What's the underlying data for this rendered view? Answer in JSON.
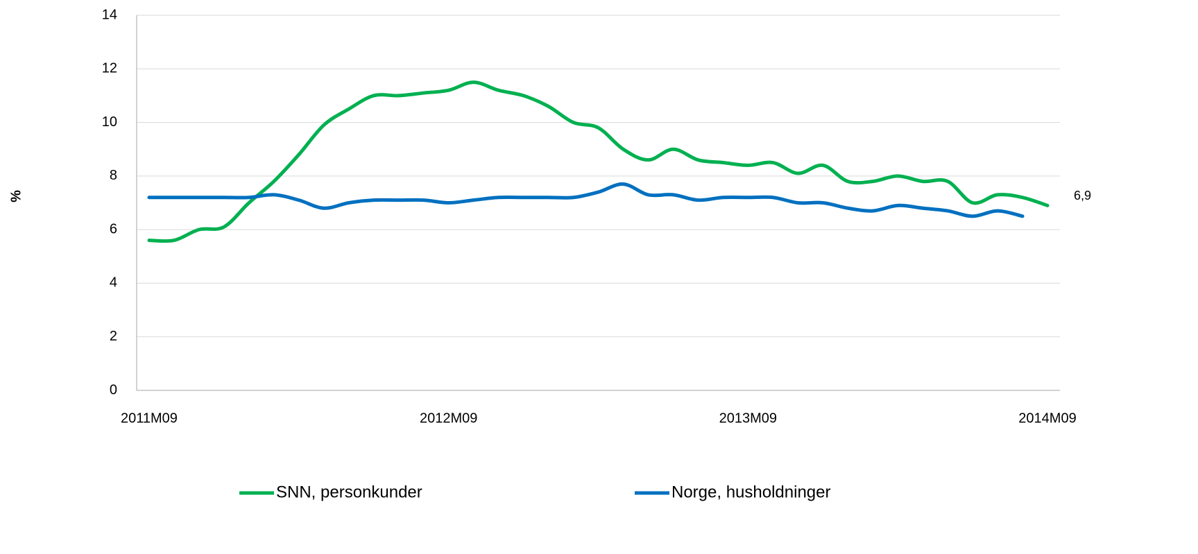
{
  "chart_data": {
    "type": "line",
    "y_label": "%",
    "categories": [
      "2011M09",
      null,
      null,
      null,
      null,
      null,
      null,
      null,
      null,
      null,
      null,
      null,
      "2012M09",
      null,
      null,
      null,
      null,
      null,
      null,
      null,
      null,
      null,
      null,
      null,
      "2013M09",
      null,
      null,
      null,
      null,
      null,
      null,
      null,
      null,
      null,
      null,
      null,
      "2014M09"
    ],
    "series": [
      {
        "name": "SNN, personkunder",
        "color": "#00b050",
        "values": [
          5.6,
          5.6,
          6.0,
          6.1,
          7.0,
          7.8,
          8.8,
          9.9,
          10.5,
          11.0,
          11.0,
          11.1,
          11.2,
          11.5,
          11.2,
          11.0,
          10.6,
          10.0,
          9.8,
          9.0,
          8.6,
          9.0,
          8.6,
          8.5,
          8.4,
          8.5,
          8.1,
          8.4,
          7.8,
          7.8,
          8.0,
          7.8,
          7.8,
          7.0,
          7.3,
          7.2,
          6.9
        ],
        "value_labels": [
          null,
          null,
          null,
          null,
          null,
          null,
          null,
          null,
          null,
          null,
          null,
          null,
          null,
          null,
          null,
          null,
          null,
          null,
          null,
          null,
          null,
          null,
          null,
          null,
          null,
          null,
          null,
          null,
          null,
          null,
          null,
          null,
          null,
          null,
          null,
          null,
          "6,9"
        ]
      },
      {
        "name": "Norge, husholdninger",
        "color": "#0070c0",
        "values": [
          7.2,
          7.2,
          7.2,
          7.2,
          7.2,
          7.3,
          7.1,
          6.8,
          7.0,
          7.1,
          7.1,
          7.1,
          7.0,
          7.1,
          7.2,
          7.2,
          7.2,
          7.2,
          7.4,
          7.7,
          7.3,
          7.3,
          7.1,
          7.2,
          7.2,
          7.2,
          7.0,
          7.0,
          6.8,
          6.7,
          6.9,
          6.8,
          6.7,
          6.5,
          6.7,
          6.5,
          null
        ]
      }
    ],
    "ylim": [
      0,
      14
    ],
    "yticks": [
      0,
      2,
      4,
      6,
      8,
      10,
      12,
      14
    ],
    "grid": true,
    "legend": "bottom"
  }
}
